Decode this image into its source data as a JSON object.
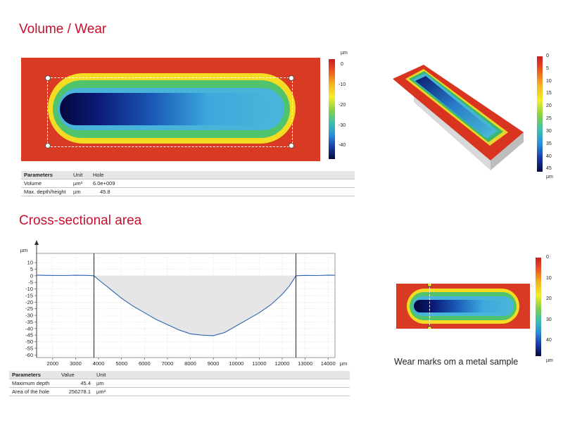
{
  "titles": {
    "volume": "Volume / Wear",
    "cross": "Cross-sectional area"
  },
  "colorbar_main": {
    "unit": "µm",
    "ticks": [
      "0",
      "-10",
      "-20",
      "-30",
      "-40"
    ]
  },
  "colorbar_3d": {
    "ticks": [
      "0",
      "5",
      "10",
      "15",
      "20",
      "25",
      "30",
      "35",
      "40",
      "45"
    ],
    "unit": "µm"
  },
  "colorbar_small": {
    "ticks": [
      "0",
      "10",
      "20",
      "30",
      "40"
    ],
    "unit": "µm"
  },
  "volume_table": {
    "headers": [
      "Parameters",
      "Unit",
      "Hole"
    ],
    "rows": [
      {
        "param": "Volume",
        "unit": "µm³",
        "value": "6.0e+009"
      },
      {
        "param": "Max. depth/height",
        "unit": "µm",
        "value": "45.8"
      }
    ]
  },
  "cross_table": {
    "headers": [
      "Parameters",
      "Value",
      "Unit"
    ],
    "rows": [
      {
        "param": "Maximum depth",
        "value": "45.4",
        "unit": "µm"
      },
      {
        "param": "Area of the hole",
        "value": "256278.1",
        "unit": "µm²"
      }
    ]
  },
  "caption": "Wear marks om a metal sample",
  "chart_data": {
    "type": "area",
    "ylabel": "µm",
    "xunit": "µm",
    "xlim": [
      1300,
      14300
    ],
    "ylim": [
      -62,
      17
    ],
    "xticks": [
      2000,
      3000,
      4000,
      5000,
      6000,
      7000,
      8000,
      9000,
      10000,
      11000,
      12000,
      13000,
      14000
    ],
    "yticks": [
      10,
      5,
      0,
      -5,
      -10,
      -15,
      -20,
      -25,
      -30,
      -35,
      -40,
      -45,
      -50,
      -55,
      -60
    ],
    "cursors_x": [
      3800,
      12600
    ],
    "grid": true,
    "profile": {
      "x": [
        1300,
        1800,
        2500,
        3000,
        3500,
        3800,
        4000,
        4500,
        5000,
        5500,
        6000,
        6500,
        7000,
        7500,
        8000,
        8500,
        9000,
        9500,
        10000,
        10500,
        11000,
        11500,
        12000,
        12300,
        12600,
        13000,
        13500,
        14000,
        14300
      ],
      "y": [
        0.5,
        0.3,
        0.2,
        0.4,
        0.3,
        0,
        -3,
        -10,
        -17,
        -23,
        -28,
        -33,
        -37,
        -41,
        -44,
        -45,
        -45.4,
        -43,
        -38,
        -33,
        -28,
        -22,
        -14,
        -8,
        0,
        0.3,
        0.2,
        0.5,
        0.4
      ]
    }
  }
}
